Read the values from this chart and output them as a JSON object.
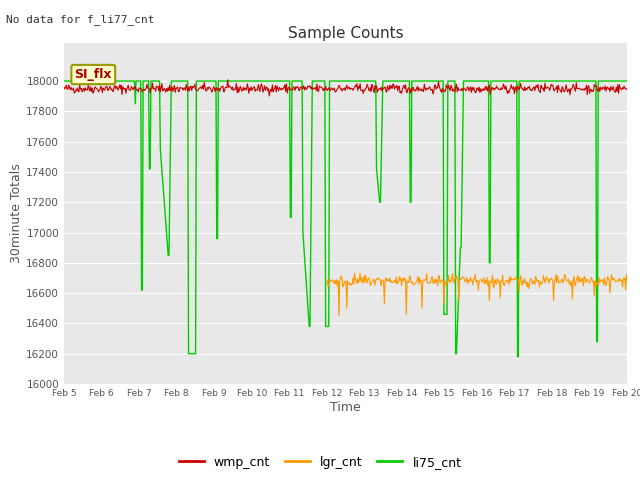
{
  "title": "Sample Counts",
  "top_left_text": "No data for f_li77_cnt",
  "annotation_text": "SI_flx",
  "xlabel": "Time",
  "ylabel": "30minute Totals",
  "ylim": [
    16000,
    18250
  ],
  "yticks": [
    16000,
    16200,
    16400,
    16600,
    16800,
    17000,
    17200,
    17400,
    17600,
    17800,
    18000
  ],
  "colors": {
    "wmp_cnt": "#cc0000",
    "lgr_cnt": "#ff9900",
    "li75_cnt": "#00cc00"
  },
  "background_color": "#e8e8e8",
  "fig_background": "#ffffff",
  "x_tick_labels": [
    "Feb 5",
    "Feb 6",
    "Feb 7",
    "Feb 8",
    "Feb 9",
    "Feb 10",
    "Feb 11",
    "Feb 12",
    "Feb 13",
    "Feb 14",
    "Feb 15",
    "Feb 16",
    "Feb 17",
    "Feb 18",
    "Feb 19",
    "Feb 20"
  ],
  "n_days": 15,
  "pts_per_day": 48,
  "wmp_base": 17950,
  "lgr_base": 16680,
  "li75_base": 18000
}
